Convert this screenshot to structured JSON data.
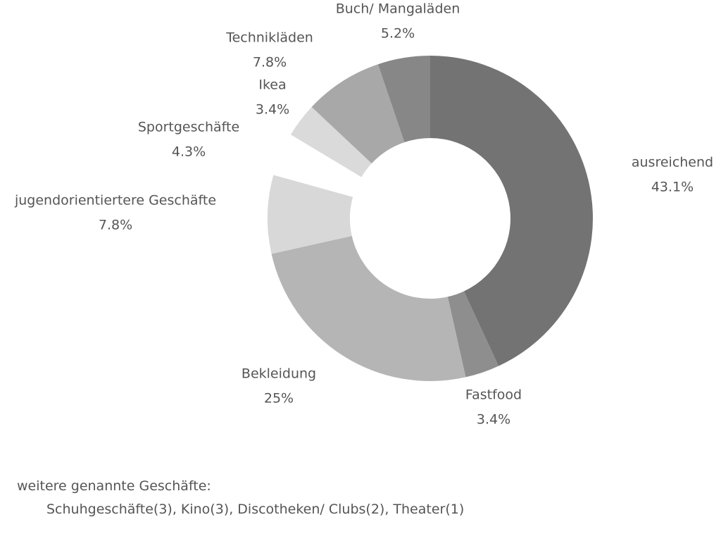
{
  "chart_data": {
    "type": "pie",
    "categories": [
      "ausreichend",
      "Fastfood",
      "Bekleidung",
      "jugendorientiertere Geschäfte",
      "Sportgeschäfte",
      "Ikea",
      "Technikläden",
      "Buch/ Mangaläden"
    ],
    "values": [
      43.1,
      3.4,
      25,
      7.8,
      4.3,
      3.4,
      7.8,
      5.2
    ],
    "value_labels": [
      "43.1%",
      "3.4%",
      "25%",
      "7.8%",
      "4.3%",
      "3.4%",
      "7.8%",
      "5.2%"
    ],
    "colors": [
      "#737373",
      "#8e8e8e",
      "#b5b5b5",
      "#d8d8d8",
      "#ffffff",
      "#dadada",
      "#a8a8a8",
      "#878787"
    ],
    "title": "",
    "legend": "none",
    "style": "donut"
  },
  "note": {
    "title": "weitere genannte Geschäfte:",
    "body": "Schuhgeschäfte(3), Kino(3), Discotheken/ Clubs(2), Theater(1)"
  }
}
